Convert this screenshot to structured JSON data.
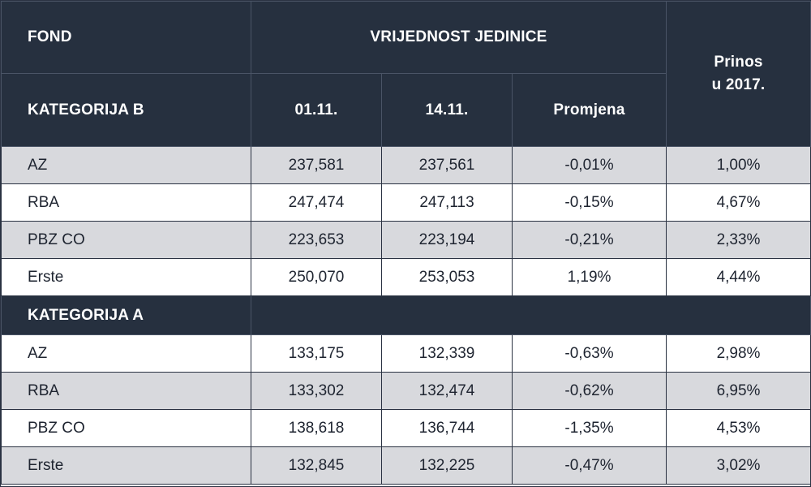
{
  "chart_data": {
    "type": "table",
    "header": {
      "fond": "FOND",
      "vrijednost_jedinice": "VRIJEDNOST JEDINICE",
      "prinos_line1": "Prinos",
      "prinos_line2": "u 2017.",
      "category_b": "KATEGORIJA B",
      "date1": "01.11.",
      "date2": "14.11.",
      "promjena": "Promjena"
    },
    "category_b_rows": [
      {
        "fond": "AZ",
        "v1": "237,581",
        "v2": "237,561",
        "promjena": "-0,01%",
        "prinos": "1,00%"
      },
      {
        "fond": "RBA",
        "v1": "247,474",
        "v2": "247,113",
        "promjena": "-0,15%",
        "prinos": "4,67%"
      },
      {
        "fond": "PBZ CO",
        "v1": "223,653",
        "v2": "223,194",
        "promjena": "-0,21%",
        "prinos": "2,33%"
      },
      {
        "fond": "Erste",
        "v1": "250,070",
        "v2": "253,053",
        "promjena": "1,19%",
        "prinos": "4,44%"
      }
    ],
    "category_a_label": "KATEGORIJA A",
    "category_a_rows": [
      {
        "fond": "AZ",
        "v1": "133,175",
        "v2": "132,339",
        "promjena": "-0,63%",
        "prinos": "2,98%"
      },
      {
        "fond": "RBA",
        "v1": "133,302",
        "v2": "132,474",
        "promjena": "-0,62%",
        "prinos": "6,95%"
      },
      {
        "fond": "PBZ CO",
        "v1": "138,618",
        "v2": "136,744",
        "promjena": "-1,35%",
        "prinos": "4,53%"
      },
      {
        "fond": "Erste",
        "v1": "132,845",
        "v2": "132,225",
        "promjena": "-0,47%",
        "prinos": "3,02%"
      }
    ]
  },
  "colors": {
    "header_bg": "#26303f",
    "header_text": "#ffffff",
    "row_shade": "#d8d9dd",
    "row_plain": "#ffffff",
    "text": "#1e2430"
  }
}
